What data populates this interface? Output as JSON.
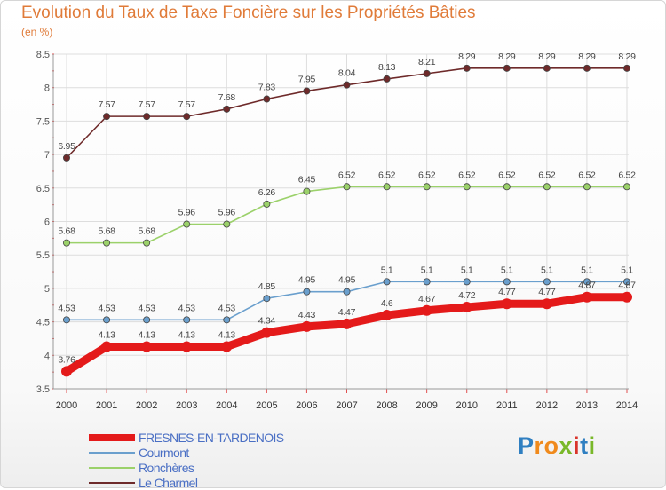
{
  "header": {
    "title": "Evolution du Taux de Taxe Foncière sur les Propriétés Bâties",
    "unit": "(en %)"
  },
  "logo": {
    "text": "Proxiti",
    "letters": [
      "P",
      "r",
      "o",
      "x",
      "i",
      "t",
      "i"
    ],
    "colors": [
      "#2f7fc1",
      "#f08a1c",
      "#f08a1c",
      "#79b829",
      "#d9342b",
      "#2f7fc1",
      "#79b829"
    ]
  },
  "chart_data": {
    "type": "line",
    "title": "Evolution du Taux de Taxe Foncière sur les Propriétés Bâties",
    "ylabel": "(en %)",
    "xlabel": "",
    "ylim": [
      3.5,
      8.5
    ],
    "yticks": [
      "3.5",
      "4",
      "4.5",
      "5",
      "5.5",
      "6",
      "6.5",
      "7",
      "7.5",
      "8",
      "8.5"
    ],
    "categories": [
      "2000",
      "2001",
      "2002",
      "2003",
      "2004",
      "2005",
      "2006",
      "2007",
      "2008",
      "2009",
      "2010",
      "2011",
      "2012",
      "2013",
      "2014"
    ],
    "grid": true,
    "legend": "bottom-left",
    "series": [
      {
        "name": "Le Charmel",
        "color": "#6e2a2a",
        "values": [
          6.95,
          7.57,
          7.57,
          7.57,
          7.68,
          7.83,
          7.95,
          8.04,
          8.13,
          8.21,
          8.29,
          8.29,
          8.29,
          8.29,
          8.29
        ],
        "labels": [
          "6.95",
          "7.57",
          "7.57",
          "7.57",
          "7.68",
          "7.83",
          "7.95",
          "8.04",
          "8.13",
          "8.21",
          "8.29",
          "8.29",
          "8.29",
          "8.29",
          "8.29"
        ]
      },
      {
        "name": "Ronchères",
        "color": "#9bd16a",
        "values": [
          5.68,
          5.68,
          5.68,
          5.96,
          5.96,
          6.26,
          6.45,
          6.52,
          6.52,
          6.52,
          6.52,
          6.52,
          6.52,
          6.52,
          6.52
        ],
        "labels": [
          "5.68",
          "5.68",
          "5.68",
          "5.96",
          "5.96",
          "6.26",
          "6.45",
          "6.52",
          "6.52",
          "6.52",
          "6.52",
          "6.52",
          "6.52",
          "6.52",
          "6.52"
        ]
      },
      {
        "name": "Courmont",
        "color": "#6a9fcd",
        "values": [
          4.53,
          4.53,
          4.53,
          4.53,
          4.53,
          4.85,
          4.95,
          4.95,
          5.1,
          5.1,
          5.1,
          5.1,
          5.1,
          5.1,
          5.1
        ],
        "labels": [
          "4.53",
          "4.53",
          "4.53",
          "4.53",
          "4.53",
          "4.85",
          "4.95",
          "4.95",
          "5.1",
          "5.1",
          "5.1",
          "5.1",
          "5.1",
          "5.1",
          "5.1"
        ]
      },
      {
        "name": "FRESNES-EN-TARDENOIS",
        "color": "#e41a1a",
        "values": [
          3.76,
          4.13,
          4.13,
          4.13,
          4.13,
          4.34,
          4.43,
          4.47,
          4.6,
          4.67,
          4.72,
          4.77,
          4.77,
          4.87,
          4.87
        ],
        "labels": [
          "3.76",
          "4.13",
          "4.13",
          "4.13",
          "4.13",
          "4.34",
          "4.43",
          "4.47",
          "4.6",
          "4.67",
          "4.72",
          "4.77",
          "4.77",
          "4.87",
          "4.87"
        ]
      }
    ],
    "legend_order": [
      "FRESNES-EN-TARDENOIS",
      "Courmont",
      "Ronchères",
      "Le Charmel"
    ]
  }
}
